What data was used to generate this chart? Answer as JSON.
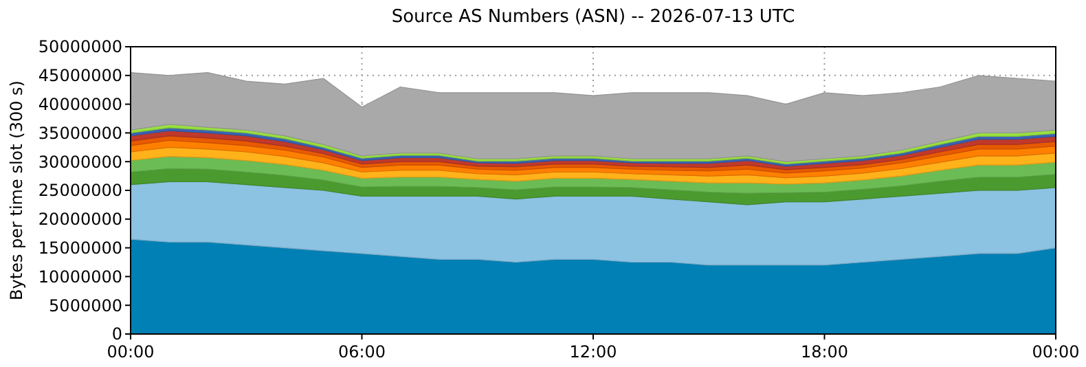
{
  "chart_data": {
    "type": "area",
    "stacked": true,
    "title": "Source AS Numbers (ASN) -- 2026-07-13 UTC",
    "ylabel": "Bytes per time slot (300 s)",
    "grid": true,
    "x": [
      0,
      1,
      2,
      3,
      4,
      5,
      6,
      7,
      8,
      9,
      10,
      11,
      12,
      13,
      14,
      15,
      16,
      17,
      18,
      19,
      20,
      21,
      22,
      23,
      24
    ],
    "xlim": [
      0,
      24
    ],
    "xticks": [
      {
        "value": 0,
        "label": "00:00"
      },
      {
        "value": 6,
        "label": "06:00"
      },
      {
        "value": 12,
        "label": "12:00"
      },
      {
        "value": 18,
        "label": "18:00"
      },
      {
        "value": 24,
        "label": "00:00"
      }
    ],
    "ylim": [
      0,
      50000000
    ],
    "yticks": [
      0,
      5000000,
      10000000,
      15000000,
      20000000,
      25000000,
      30000000,
      35000000,
      40000000,
      45000000,
      50000000
    ],
    "series": [
      {
        "color": "#0080b4",
        "values": [
          16500000,
          16000000,
          16000000,
          15500000,
          15000000,
          14500000,
          14000000,
          13500000,
          13000000,
          13000000,
          12500000,
          13000000,
          13000000,
          12500000,
          12500000,
          12000000,
          12000000,
          12000000,
          12000000,
          12500000,
          13000000,
          13500000,
          14000000,
          14000000,
          15000000
        ]
      },
      {
        "color": "#8cc2e2",
        "values": [
          9500000,
          10500000,
          10500000,
          10500000,
          10500000,
          10500000,
          10000000,
          10500000,
          11000000,
          11000000,
          11000000,
          11000000,
          11000000,
          11500000,
          11000000,
          11000000,
          10500000,
          11000000,
          11000000,
          11000000,
          11000000,
          11000000,
          11000000,
          11000000,
          10500000
        ]
      },
      {
        "color": "#4b9a2f",
        "values": [
          2200000,
          2300000,
          2200000,
          2200000,
          2100000,
          1800000,
          1600000,
          1700000,
          1700000,
          1500000,
          1600000,
          1600000,
          1600000,
          1500000,
          1600000,
          1700000,
          2000000,
          1600000,
          1700000,
          1700000,
          1800000,
          2100000,
          2300000,
          2300000,
          2300000
        ]
      },
      {
        "color": "#6cbc55",
        "values": [
          2000000,
          2100000,
          2000000,
          2000000,
          1900000,
          1700000,
          1500000,
          1600000,
          1600000,
          1400000,
          1500000,
          1500000,
          1500000,
          1400000,
          1500000,
          1600000,
          1800000,
          1500000,
          1600000,
          1600000,
          1700000,
          1900000,
          2100000,
          2100000,
          2100000
        ]
      },
      {
        "color": "#ffb21a",
        "values": [
          1500000,
          1600000,
          1500000,
          1500000,
          1400000,
          1300000,
          1100000,
          1200000,
          1200000,
          1000000,
          1100000,
          1100000,
          1100000,
          1000000,
          1100000,
          1200000,
          1400000,
          1100000,
          1200000,
          1200000,
          1300000,
          1400000,
          1600000,
          1600000,
          1600000
        ]
      },
      {
        "color": "#ff8000",
        "values": [
          1100000,
          1200000,
          1100000,
          1100000,
          1100000,
          1000000,
          800000,
          900000,
          900000,
          800000,
          800000,
          800000,
          800000,
          800000,
          800000,
          900000,
          1000000,
          800000,
          900000,
          900000,
          1000000,
          1100000,
          1200000,
          1200000,
          1200000
        ]
      },
      {
        "color": "#e85a00",
        "values": [
          800000,
          800000,
          800000,
          800000,
          700000,
          600000,
          600000,
          600000,
          600000,
          500000,
          600000,
          600000,
          600000,
          500000,
          600000,
          600000,
          700000,
          600000,
          600000,
          600000,
          600000,
          700000,
          800000,
          800000,
          800000
        ]
      },
      {
        "color": "#c0392b",
        "values": [
          900000,
          900000,
          900000,
          900000,
          800000,
          700000,
          600000,
          700000,
          700000,
          600000,
          600000,
          600000,
          600000,
          600000,
          600000,
          700000,
          800000,
          600000,
          700000,
          700000,
          700000,
          800000,
          900000,
          900000,
          900000
        ]
      },
      {
        "color": "#3a64b4",
        "values": [
          500000,
          500000,
          500000,
          500000,
          500000,
          400000,
          400000,
          400000,
          400000,
          300000,
          400000,
          400000,
          400000,
          300000,
          400000,
          400000,
          400000,
          400000,
          400000,
          400000,
          400000,
          500000,
          500000,
          500000,
          500000
        ]
      },
      {
        "color": "#99e040",
        "values": [
          500000,
          600000,
          500000,
          500000,
          500000,
          500000,
          400000,
          400000,
          400000,
          400000,
          400000,
          400000,
          400000,
          400000,
          400000,
          400000,
          400000,
          400000,
          400000,
          400000,
          500000,
          500000,
          600000,
          600000,
          600000
        ]
      },
      {
        "color": "#a9a9a9",
        "values": [
          10000000,
          8500000,
          9500000,
          8500000,
          9000000,
          11500000,
          8500000,
          11500000,
          10500000,
          11500000,
          11500000,
          11000000,
          10500000,
          11500000,
          11500000,
          11500000,
          10500000,
          10000000,
          11500000,
          10500000,
          10000000,
          9500000,
          10000000,
          9500000,
          8500000
        ]
      }
    ]
  }
}
